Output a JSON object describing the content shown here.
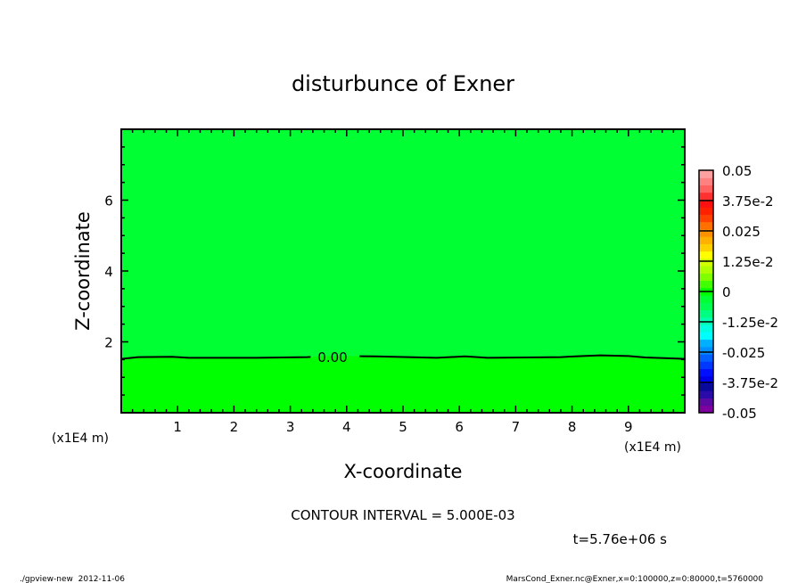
{
  "chart_data": {
    "type": "heatmap",
    "title": "disturbunce of Exner",
    "xlabel": "X-coordinate",
    "ylabel": "Z-coordinate",
    "x_unit_label": "(x1E4 m)",
    "y_unit_label": "(x1E4 m)",
    "xlim": [
      0,
      10
    ],
    "ylim": [
      0,
      8
    ],
    "xticks": [
      1,
      2,
      3,
      4,
      5,
      6,
      7,
      8,
      9
    ],
    "yticks": [
      2,
      4,
      6
    ],
    "contour_label": "0.00",
    "contour_level": 0,
    "contour_line": {
      "x": [
        0,
        0.3,
        0.9,
        1.2,
        2.4,
        3.3,
        3.6,
        4.5,
        5.6,
        6.1,
        6.5,
        7.8,
        8.2,
        8.5,
        9.0,
        9.3,
        10
      ],
      "y": [
        1.52,
        1.57,
        1.58,
        1.55,
        1.55,
        1.57,
        1.6,
        1.59,
        1.55,
        1.59,
        1.55,
        1.57,
        1.6,
        1.62,
        1.6,
        1.56,
        1.52
      ]
    },
    "region_below_color": "#00ff00",
    "region_above_color": "#00ff33",
    "colorbar": {
      "min": -0.05,
      "max": 0.05,
      "tick_labels": [
        "0.05",
        "3.75e-2",
        "0.025",
        "1.25e-2",
        "0",
        "-1.25e-2",
        "-0.025",
        "-3.75e-2",
        "-0.05"
      ],
      "colors": [
        "#7f00a0",
        "#5a0aa0",
        "#2a0aa8",
        "#0a0a9a",
        "#0000e8",
        "#0010ff",
        "#0038ff",
        "#0060ff",
        "#0090ff",
        "#00b0ff",
        "#00ffff",
        "#00ffe0",
        "#00ffb0",
        "#00ff80",
        "#00ff50",
        "#00ff33",
        "#00ff00",
        "#40ff00",
        "#80ff00",
        "#b0ff00",
        "#d0ff00",
        "#ffff00",
        "#ffd000",
        "#ffb000",
        "#ff9000",
        "#ff7000",
        "#ff4000",
        "#ff2000",
        "#ff1010",
        "#ff3030",
        "#ff6060",
        "#ff8080",
        "#ffa0a0"
      ]
    },
    "annotations": {
      "contour_interval": "CONTOUR INTERVAL = 5.000E-03",
      "time": "t=5.76e+06 s"
    }
  },
  "footer": {
    "left": "./gpview-new  2012-11-06",
    "right": "MarsCond_Exner.nc@Exner,x=0:100000,z=0:80000,t=5760000"
  }
}
